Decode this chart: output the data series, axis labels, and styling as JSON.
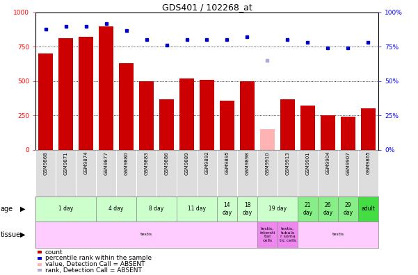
{
  "title": "GDS401 / 102268_at",
  "samples": [
    "GSM9868",
    "GSM9871",
    "GSM9874",
    "GSM9877",
    "GSM9880",
    "GSM9883",
    "GSM9886",
    "GSM9889",
    "GSM9892",
    "GSM9895",
    "GSM9898",
    "GSM9910",
    "GSM9913",
    "GSM9901",
    "GSM9904",
    "GSM9907",
    "GSM9865"
  ],
  "counts": [
    700,
    810,
    820,
    900,
    630,
    500,
    370,
    520,
    510,
    360,
    500,
    150,
    370,
    320,
    250,
    240,
    300
  ],
  "absent_count_idx": 11,
  "percentile_ranks": [
    88,
    90,
    90,
    92,
    87,
    80,
    76,
    80,
    80,
    80,
    82,
    65,
    80,
    78,
    74,
    74,
    78
  ],
  "absent_rank_idx": 11,
  "ylim": [
    0,
    1000
  ],
  "y2lim": [
    0,
    100
  ],
  "yticks": [
    0,
    250,
    500,
    750,
    1000
  ],
  "y2ticks": [
    0,
    25,
    50,
    75,
    100
  ],
  "bar_color": "#cc0000",
  "absent_bar_color": "#ffb3b3",
  "dot_color": "#0000cc",
  "absent_dot_color": "#aaaadd",
  "grid_color": "#aaaaaa",
  "age_groups": [
    {
      "label": "1 day",
      "start": 0,
      "end": 3,
      "color": "#ccffcc"
    },
    {
      "label": "4 day",
      "start": 3,
      "end": 5,
      "color": "#ccffcc"
    },
    {
      "label": "8 day",
      "start": 5,
      "end": 7,
      "color": "#ccffcc"
    },
    {
      "label": "11 day",
      "start": 7,
      "end": 9,
      "color": "#ccffcc"
    },
    {
      "label": "14\nday",
      "start": 9,
      "end": 10,
      "color": "#ccffcc"
    },
    {
      "label": "18\nday",
      "start": 10,
      "end": 11,
      "color": "#ccffcc"
    },
    {
      "label": "19 day",
      "start": 11,
      "end": 13,
      "color": "#ccffcc"
    },
    {
      "label": "21\nday",
      "start": 13,
      "end": 14,
      "color": "#88ee88"
    },
    {
      "label": "26\nday",
      "start": 14,
      "end": 15,
      "color": "#88ee88"
    },
    {
      "label": "29\nday",
      "start": 15,
      "end": 16,
      "color": "#88ee88"
    },
    {
      "label": "adult",
      "start": 16,
      "end": 17,
      "color": "#44dd44"
    }
  ],
  "tissue_groups": [
    {
      "label": "testis",
      "start": 0,
      "end": 11,
      "color": "#ffccff"
    },
    {
      "label": "testis,\nintersti\ntial\ncells",
      "start": 11,
      "end": 12,
      "color": "#ee88ee"
    },
    {
      "label": "testis,\ntubula\nr soma\ntic cells",
      "start": 12,
      "end": 13,
      "color": "#ee88ee"
    },
    {
      "label": "testis",
      "start": 13,
      "end": 17,
      "color": "#ffccff"
    }
  ],
  "legend_items": [
    {
      "color": "#cc0000",
      "label": "count"
    },
    {
      "color": "#0000cc",
      "label": "percentile rank within the sample"
    },
    {
      "color": "#ffb3b3",
      "label": "value, Detection Call = ABSENT"
    },
    {
      "color": "#aaaadd",
      "label": "rank, Detection Call = ABSENT"
    }
  ],
  "bg_color": "#ffffff",
  "label_bg": "#dddddd"
}
